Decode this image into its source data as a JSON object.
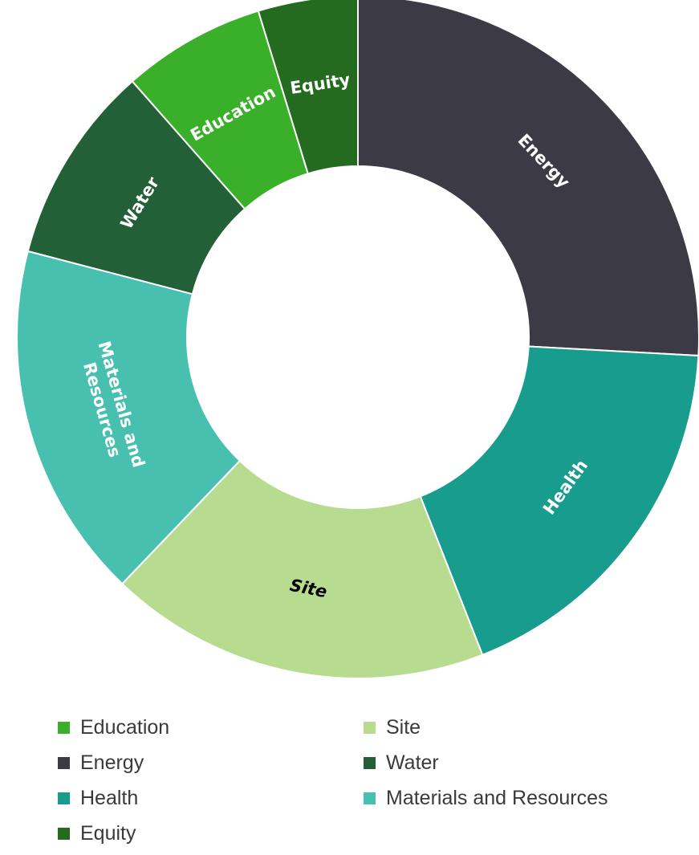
{
  "chart_data": {
    "type": "pie",
    "donut": true,
    "title": "",
    "slices": [
      {
        "label": "Energy",
        "value": 26.3,
        "color": "#3c3a45",
        "text_color": "#ffffff",
        "italic": false
      },
      {
        "label": "Health",
        "value": 18.5,
        "color": "#189c8e",
        "text_color": "#ffffff",
        "italic": false
      },
      {
        "label": "Site",
        "value": 18.4,
        "color": "#b7dc8f",
        "text_color": "#000000",
        "italic": true
      },
      {
        "label": "Materials and Resources",
        "value": 17.2,
        "color": "#48c0b0",
        "text_color": "#ffffff",
        "italic": false
      },
      {
        "label": "Water",
        "value": 9.6,
        "color": "#235f37",
        "text_color": "#ffffff",
        "italic": false
      },
      {
        "label": "Education",
        "value": 6.9,
        "color": "#39af2a",
        "text_color": "#ffffff",
        "italic": false
      },
      {
        "label": "Equity",
        "value": 4.8,
        "color": "#246b20",
        "text_color": "#ffffff",
        "italic": false
      }
    ],
    "legend": {
      "placement": "bottom",
      "entries": [
        {
          "label": "Education",
          "color": "#39af2a"
        },
        {
          "label": "Site",
          "color": "#b7dc8f"
        },
        {
          "label": "Energy",
          "color": "#3c3a45"
        },
        {
          "label": "Water",
          "color": "#235f37"
        },
        {
          "label": "Health",
          "color": "#189c8e"
        },
        {
          "label": "Materials and Resources",
          "color": "#48c0b0"
        },
        {
          "label": "Equity",
          "color": "#246b20"
        }
      ]
    }
  }
}
